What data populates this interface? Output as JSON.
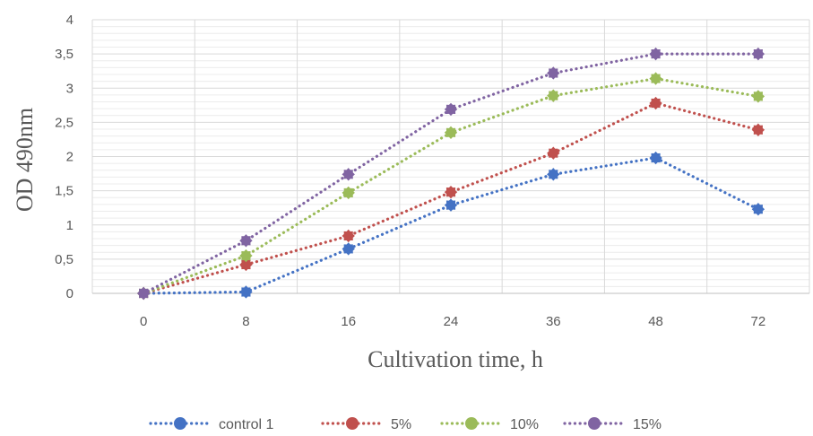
{
  "chart_data": {
    "type": "line",
    "categories": [
      "0",
      "8",
      "16",
      "24",
      "36",
      "48",
      "72"
    ],
    "xlabel": "Cultivation time, h",
    "ylabel": "OD 490nm",
    "ylim": [
      0,
      4
    ],
    "y_ticks": [
      "0",
      "0,5",
      "1",
      "1,5",
      "2",
      "2,5",
      "3",
      "3,5",
      "4"
    ],
    "grid": true,
    "legend_position": "bottom",
    "series": [
      {
        "name": "control 1",
        "color": "#4472c4",
        "values": [
          0,
          0.02,
          0.65,
          1.29,
          1.74,
          1.98,
          1.23
        ]
      },
      {
        "name": "5%",
        "color": "#c0504d",
        "values": [
          0,
          0.42,
          0.84,
          1.48,
          2.05,
          2.78,
          2.39
        ]
      },
      {
        "name": "10%",
        "color": "#9bbb59",
        "values": [
          0,
          0.55,
          1.47,
          2.35,
          2.89,
          3.14,
          2.88
        ]
      },
      {
        "name": "15%",
        "color": "#8064a2",
        "values": [
          0,
          0.77,
          1.74,
          2.69,
          3.22,
          3.5,
          3.5
        ]
      }
    ]
  }
}
